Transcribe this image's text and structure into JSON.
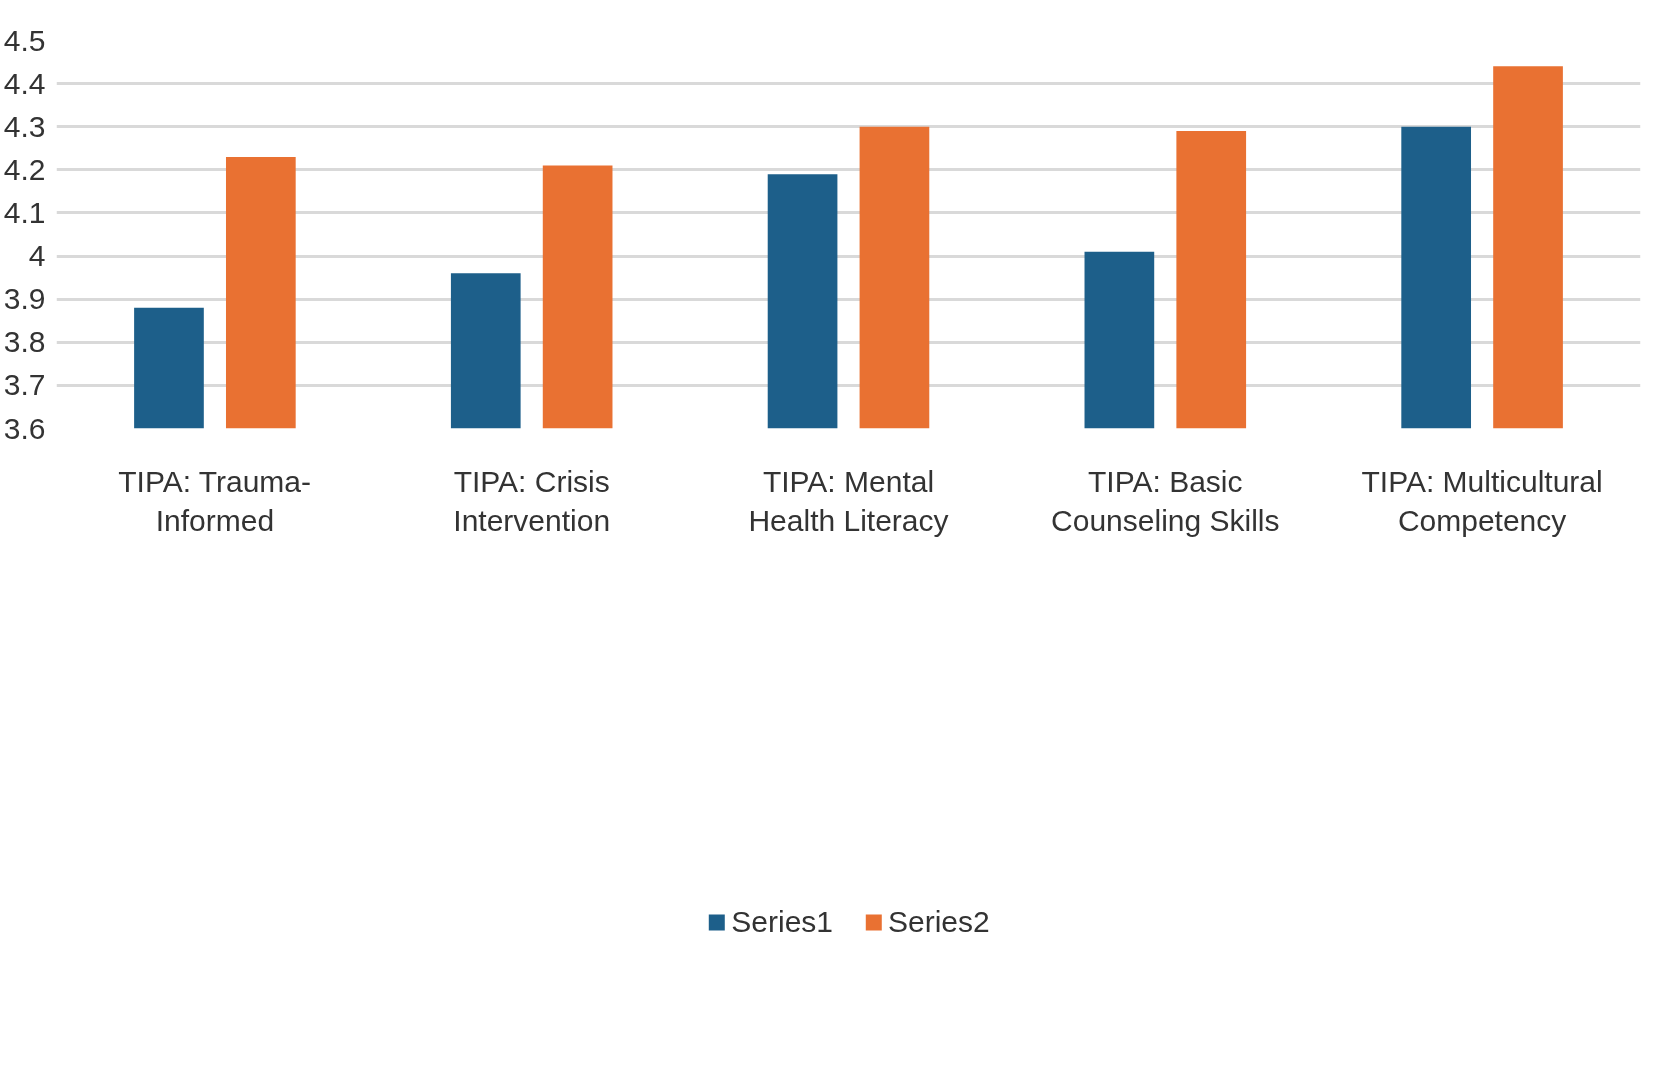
{
  "chart_data": {
    "type": "bar",
    "categories": [
      "TIPA: Trauma-Informed",
      "TIPA: Crisis Intervention",
      "TIPA: Mental Health Literacy",
      "TIPA: Basic Counseling Skills",
      "TIPA: Multicultural Competency"
    ],
    "series": [
      {
        "name": "Series1",
        "color": "#1d5f8a",
        "values": [
          3.88,
          3.96,
          4.19,
          4.01,
          4.3
        ]
      },
      {
        "name": "Series2",
        "color": "#e97132",
        "values": [
          4.23,
          4.21,
          4.3,
          4.29,
          4.44
        ]
      }
    ],
    "ylim": [
      3.6,
      4.5
    ],
    "yticks": [
      3.6,
      3.7,
      3.8,
      3.9,
      {
        "value": 4,
        "label": "4"
      },
      4.1,
      4.2,
      4.3,
      4.4,
      4.5
    ],
    "grid": "y",
    "legend": "bottom"
  }
}
